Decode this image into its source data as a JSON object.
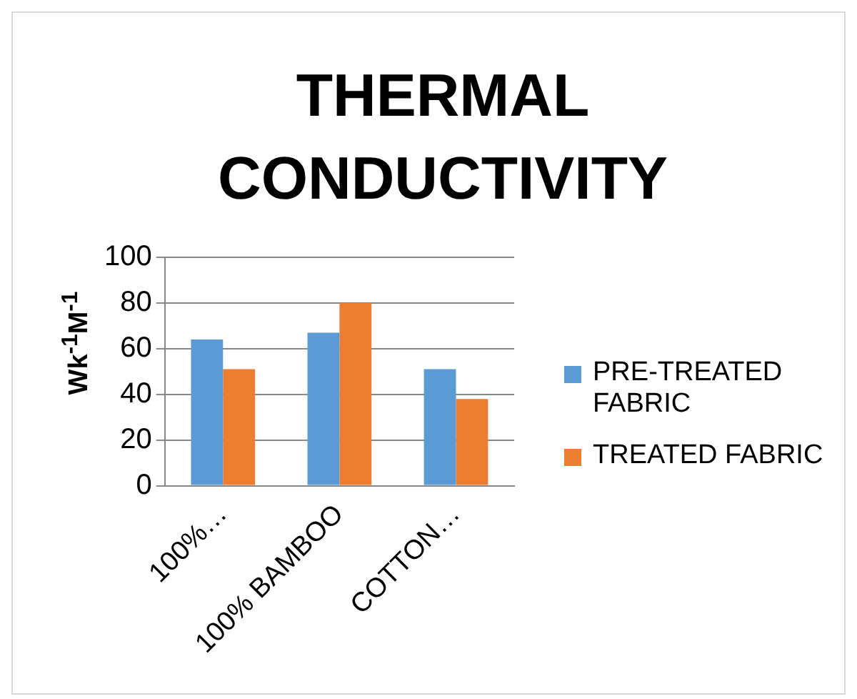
{
  "chart_data": {
    "type": "bar",
    "title": "THERMAL CONDUCTIVITY",
    "ylabel": "Wk$^{-1}$M$^{-1}$",
    "categories": [
      "100%…",
      "100% BAMBOO",
      "COTTON…"
    ],
    "series": [
      {
        "name": "PRE-TREATED FABRIC",
        "color": "#5b9bd5",
        "values": [
          64,
          67,
          51
        ]
      },
      {
        "name": "TREATED FABRIC",
        "color": "#ed7d31",
        "values": [
          51,
          80,
          38
        ]
      }
    ],
    "ylim": [
      0,
      100
    ],
    "yticks": [
      0,
      20,
      40,
      60,
      80,
      100
    ],
    "grid": "y",
    "legend": "right"
  }
}
